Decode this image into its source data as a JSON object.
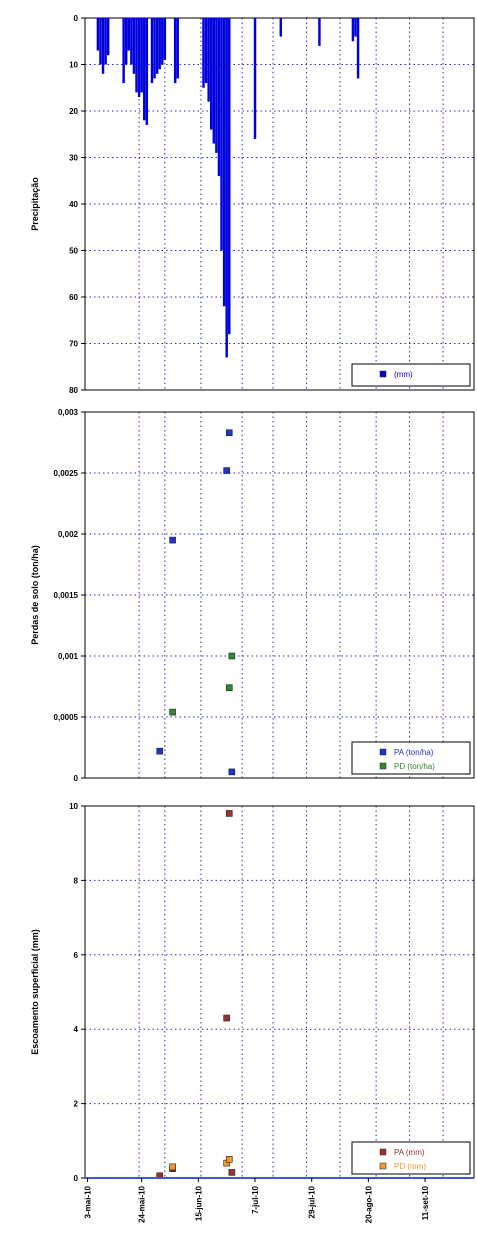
{
  "chart_data": [
    {
      "type": "bar",
      "ylabel": "Precipitação",
      "ylim": [
        0,
        80
      ],
      "y_inverted": true,
      "yticks": [
        "0",
        "10",
        "20",
        "30",
        "40",
        "50",
        "60",
        "70",
        "80"
      ],
      "grid": true,
      "legend_position": "bottom-right",
      "series": [
        {
          "name": "(mm)",
          "color": "#0000dd",
          "x": [
            4,
            5,
            6,
            7,
            8,
            14,
            15,
            16,
            17,
            18,
            19,
            20,
            21,
            22,
            23,
            25,
            26,
            27,
            28,
            29,
            30,
            34,
            35,
            45,
            46,
            47,
            48,
            49,
            50,
            51,
            52,
            53,
            54,
            55,
            65,
            75,
            90,
            103,
            104,
            105
          ],
          "values": [
            7,
            10,
            12,
            10,
            8,
            14,
            10,
            7,
            10,
            12,
            16,
            17,
            16,
            22,
            23,
            14,
            13,
            12,
            11,
            10,
            9,
            14,
            13,
            15,
            14,
            18,
            24,
            27,
            29,
            34,
            50,
            62,
            73,
            68,
            26,
            4,
            6,
            5,
            4,
            13
          ]
        }
      ]
    },
    {
      "type": "scatter",
      "ylabel": "Perdas de solo (ton/ha)",
      "ylim": [
        0,
        0.003
      ],
      "yticks": [
        "0",
        "0,0005",
        "0,001",
        "0,0015",
        "0,002",
        "0,0025",
        "0,003"
      ],
      "grid": true,
      "legend_position": "bottom-right",
      "series": [
        {
          "name": "PA (ton/ha)",
          "color": "#2233cc",
          "x": [
            28,
            33,
            54,
            55,
            56
          ],
          "values": [
            0.00022,
            0.00195,
            0.00252,
            0.00283,
            5e-05
          ]
        },
        {
          "name": "PD (ton/ha)",
          "color": "#338833",
          "x": [
            33,
            55,
            56
          ],
          "values": [
            0.00054,
            0.00074,
            0.001
          ]
        }
      ]
    },
    {
      "type": "scatter",
      "ylabel": "Escoamento superficial (mm)",
      "ylim": [
        0,
        10
      ],
      "yticks": [
        "0",
        "2",
        "4",
        "6",
        "8",
        "10"
      ],
      "grid": true,
      "legend_position": "bottom-right",
      "xticks": [
        {
          "label": "3-mai-10",
          "day": 0
        },
        {
          "label": "24-mai-10",
          "day": 21
        },
        {
          "label": "15-jun-10",
          "day": 43
        },
        {
          "label": "7-jul-10",
          "day": 65
        },
        {
          "label": "29-jul-10",
          "day": 87
        },
        {
          "label": "20-ago-10",
          "day": 109
        },
        {
          "label": "11-set-10",
          "day": 131
        }
      ],
      "series": [
        {
          "name": "PA (mm)",
          "color": "#993333",
          "x": [
            28,
            33,
            54,
            55,
            56
          ],
          "values": [
            0.06,
            0.25,
            4.3,
            9.8,
            0.15
          ]
        },
        {
          "name": "PD (mm)",
          "color": "#ee9933",
          "x": [
            33,
            54,
            55
          ],
          "values": [
            0.3,
            0.4,
            0.5
          ]
        }
      ]
    }
  ]
}
